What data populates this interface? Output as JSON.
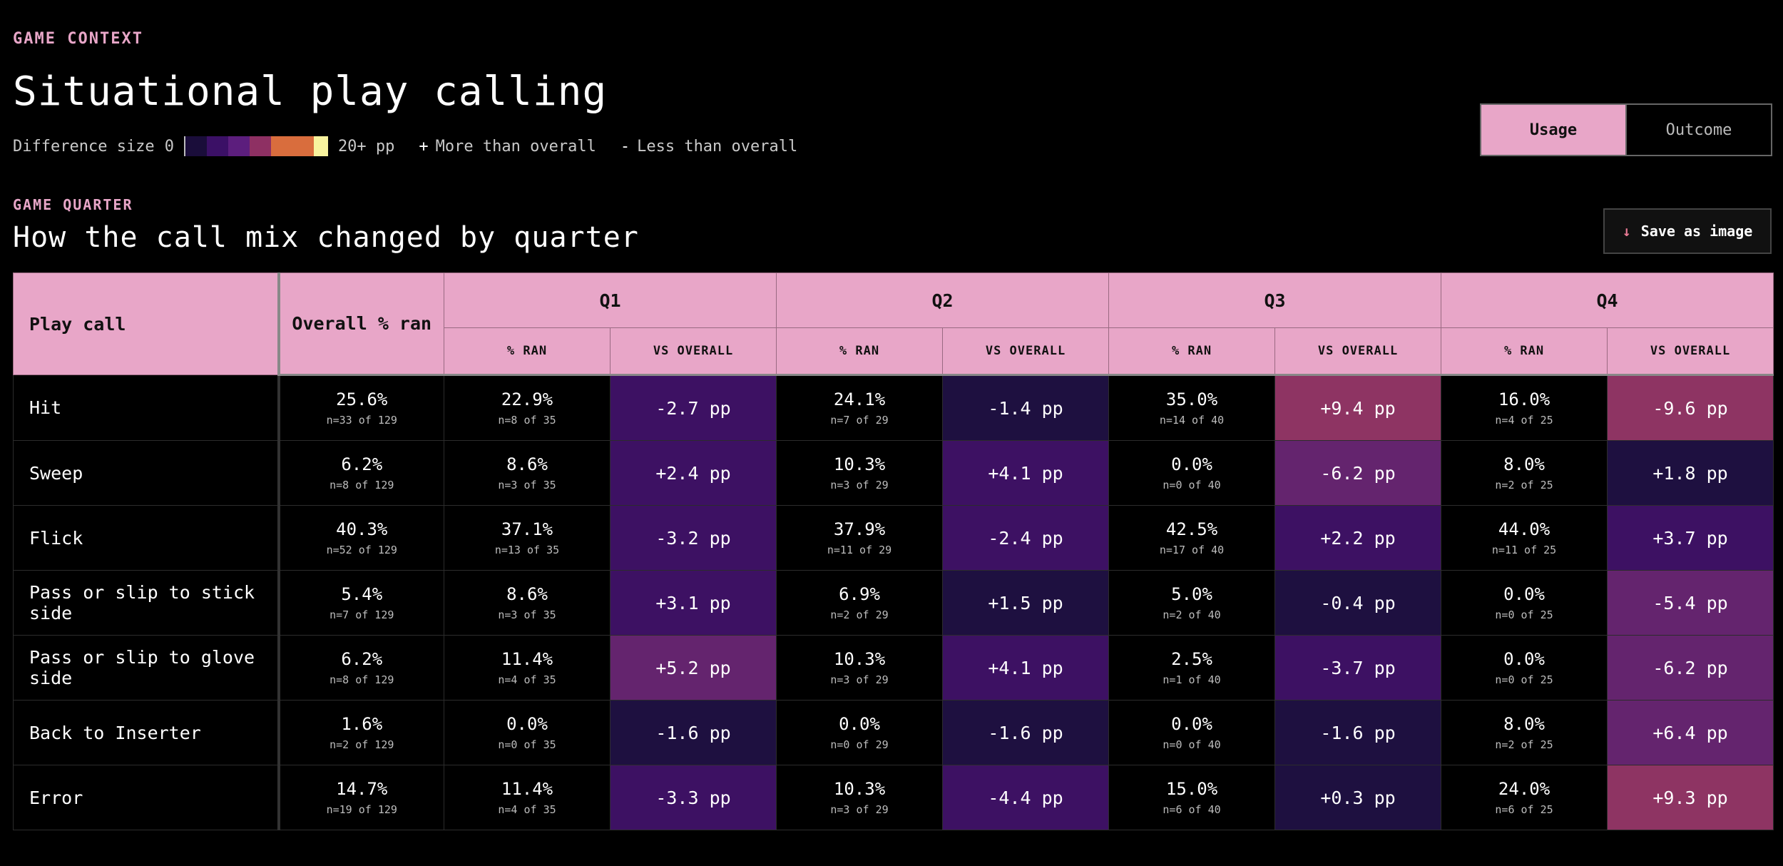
{
  "header": {
    "eyebrow": "GAME CONTEXT",
    "title": "Situational play calling"
  },
  "legend": {
    "label": "Difference size",
    "min": "0",
    "max": "20+ pp",
    "scale_colors": [
      "#1a0d3a",
      "#3b1066",
      "#5c1e7d",
      "#8e3063",
      "#d96d3d",
      "#d96d3d",
      "#f8f39e"
    ],
    "more_sign": "+",
    "more_label": "More than overall",
    "less_sign": "-",
    "less_label": "Less than overall"
  },
  "toggle": {
    "options": [
      {
        "label": "Usage",
        "active": true
      },
      {
        "label": "Outcome",
        "active": false
      }
    ]
  },
  "section": {
    "eyebrow": "GAME QUARTER",
    "title": "How the call mix changed by quarter",
    "save_label": "Save as image",
    "save_icon": "arrow-down-icon"
  },
  "table": {
    "col_playcall": "Play call",
    "col_overall": "Overall % ran",
    "quarters": [
      "Q1",
      "Q2",
      "Q3",
      "Q4"
    ],
    "sub_pct": "% RAN",
    "sub_vs": "VS OVERALL",
    "colors": {
      "none": "#000000",
      "lvl1": "#1e1040",
      "lvl2": "#3d1163",
      "lvl3": "#64246e",
      "lvl4": "#8e3463"
    },
    "rows": [
      {
        "label": "Hit",
        "overall": "25.6%",
        "overall_n": "n=33 of 129",
        "q": [
          {
            "pct": "22.9%",
            "n": "n=8 of 35",
            "vs": "-2.7 pp",
            "lvl": "lvl2"
          },
          {
            "pct": "24.1%",
            "n": "n=7 of 29",
            "vs": "-1.4 pp",
            "lvl": "lvl1"
          },
          {
            "pct": "35.0%",
            "n": "n=14 of 40",
            "vs": "+9.4 pp",
            "lvl": "lvl4"
          },
          {
            "pct": "16.0%",
            "n": "n=4 of 25",
            "vs": "-9.6 pp",
            "lvl": "lvl4"
          }
        ]
      },
      {
        "label": "Sweep",
        "overall": "6.2%",
        "overall_n": "n=8 of 129",
        "q": [
          {
            "pct": "8.6%",
            "n": "n=3 of 35",
            "vs": "+2.4 pp",
            "lvl": "lvl2"
          },
          {
            "pct": "10.3%",
            "n": "n=3 of 29",
            "vs": "+4.1 pp",
            "lvl": "lvl2"
          },
          {
            "pct": "0.0%",
            "n": "n=0 of 40",
            "vs": "-6.2 pp",
            "lvl": "lvl3"
          },
          {
            "pct": "8.0%",
            "n": "n=2 of 25",
            "vs": "+1.8 pp",
            "lvl": "lvl1"
          }
        ]
      },
      {
        "label": "Flick",
        "overall": "40.3%",
        "overall_n": "n=52 of 129",
        "q": [
          {
            "pct": "37.1%",
            "n": "n=13 of 35",
            "vs": "-3.2 pp",
            "lvl": "lvl2"
          },
          {
            "pct": "37.9%",
            "n": "n=11 of 29",
            "vs": "-2.4 pp",
            "lvl": "lvl2"
          },
          {
            "pct": "42.5%",
            "n": "n=17 of 40",
            "vs": "+2.2 pp",
            "lvl": "lvl2"
          },
          {
            "pct": "44.0%",
            "n": "n=11 of 25",
            "vs": "+3.7 pp",
            "lvl": "lvl2"
          }
        ]
      },
      {
        "label": "Pass or slip to stick side",
        "overall": "5.4%",
        "overall_n": "n=7 of 129",
        "q": [
          {
            "pct": "8.6%",
            "n": "n=3 of 35",
            "vs": "+3.1 pp",
            "lvl": "lvl2"
          },
          {
            "pct": "6.9%",
            "n": "n=2 of 29",
            "vs": "+1.5 pp",
            "lvl": "lvl1"
          },
          {
            "pct": "5.0%",
            "n": "n=2 of 40",
            "vs": "-0.4 pp",
            "lvl": "lvl1"
          },
          {
            "pct": "0.0%",
            "n": "n=0 of 25",
            "vs": "-5.4 pp",
            "lvl": "lvl3"
          }
        ]
      },
      {
        "label": "Pass or slip to glove side",
        "overall": "6.2%",
        "overall_n": "n=8 of 129",
        "q": [
          {
            "pct": "11.4%",
            "n": "n=4 of 35",
            "vs": "+5.2 pp",
            "lvl": "lvl3"
          },
          {
            "pct": "10.3%",
            "n": "n=3 of 29",
            "vs": "+4.1 pp",
            "lvl": "lvl2"
          },
          {
            "pct": "2.5%",
            "n": "n=1 of 40",
            "vs": "-3.7 pp",
            "lvl": "lvl2"
          },
          {
            "pct": "0.0%",
            "n": "n=0 of 25",
            "vs": "-6.2 pp",
            "lvl": "lvl3"
          }
        ]
      },
      {
        "label": "Back to Inserter",
        "overall": "1.6%",
        "overall_n": "n=2 of 129",
        "q": [
          {
            "pct": "0.0%",
            "n": "n=0 of 35",
            "vs": "-1.6 pp",
            "lvl": "lvl1"
          },
          {
            "pct": "0.0%",
            "n": "n=0 of 29",
            "vs": "-1.6 pp",
            "lvl": "lvl1"
          },
          {
            "pct": "0.0%",
            "n": "n=0 of 40",
            "vs": "-1.6 pp",
            "lvl": "lvl1"
          },
          {
            "pct": "8.0%",
            "n": "n=2 of 25",
            "vs": "+6.4 pp",
            "lvl": "lvl3"
          }
        ]
      },
      {
        "label": "Error",
        "overall": "14.7%",
        "overall_n": "n=19 of 129",
        "q": [
          {
            "pct": "11.4%",
            "n": "n=4 of 35",
            "vs": "-3.3 pp",
            "lvl": "lvl2"
          },
          {
            "pct": "10.3%",
            "n": "n=3 of 29",
            "vs": "-4.4 pp",
            "lvl": "lvl2"
          },
          {
            "pct": "15.0%",
            "n": "n=6 of 40",
            "vs": "+0.3 pp",
            "lvl": "lvl1"
          },
          {
            "pct": "24.0%",
            "n": "n=6 of 25",
            "vs": "+9.3 pp",
            "lvl": "lvl4"
          }
        ]
      }
    ]
  }
}
